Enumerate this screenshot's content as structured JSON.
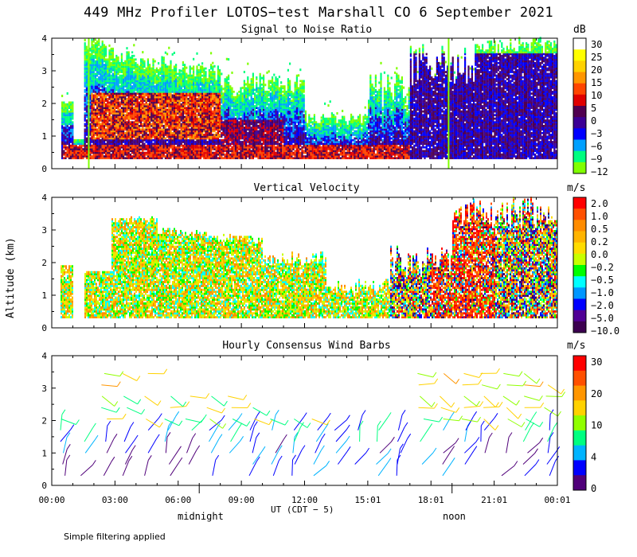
{
  "title": "449 MHz Profiler LOTOS−test Marshall CO  6 September 2021",
  "ylabel": "Altitude (km)",
  "xlabel": "UT  (CDT − 5)",
  "local_labels": [
    "midnight",
    "noon"
  ],
  "footnote": "Simple filtering applied",
  "chart_data": [
    {
      "type": "heatmap",
      "title": "Signal to Noise Ratio",
      "unit": "dB",
      "x_ticks": [
        "00:00",
        "03:00",
        "06:00",
        "09:00",
        "12:00",
        "15:01",
        "18:01",
        "21:01",
        "00:01"
      ],
      "x_range_hours": [
        0,
        24
      ],
      "y_ticks": [
        "0",
        "1",
        "2",
        "3",
        "4"
      ],
      "ylim": [
        0,
        4
      ],
      "colorbar": {
        "labels": [
          "30",
          "25",
          "20",
          "15",
          "10",
          "5",
          "0",
          "−3",
          "−6",
          "−9",
          "−12"
        ],
        "colors": [
          "#ffffff",
          "#ffff00",
          "#ffd200",
          "#ff9600",
          "#ff4600",
          "#e00000",
          "#500050",
          "#3c0096",
          "#0000ff",
          "#00a0ff",
          "#00ff80",
          "#80ff00"
        ]
      }
    },
    {
      "type": "heatmap",
      "title": "Vertical Velocity",
      "unit": "m/s",
      "x_ticks": [
        "00:00",
        "03:00",
        "06:00",
        "09:00",
        "12:00",
        "15:01",
        "18:01",
        "21:01",
        "00:01"
      ],
      "x_range_hours": [
        0,
        24
      ],
      "y_ticks": [
        "0",
        "1",
        "2",
        "3",
        "4"
      ],
      "ylim": [
        0,
        4
      ],
      "colorbar": {
        "labels": [
          "2.0",
          "1.0",
          "0.5",
          "0.2",
          "0.0",
          "−0.2",
          "−0.5",
          "−1.0",
          "−2.0",
          "−5.0",
          "−10.0"
        ],
        "colors": [
          "#ff0000",
          "#ff5000",
          "#ff8c00",
          "#ffb400",
          "#ffdc00",
          "#c8ff00",
          "#00ff00",
          "#00ffff",
          "#0096ff",
          "#0000ff",
          "#500096",
          "#3c0050"
        ]
      }
    },
    {
      "type": "scatter",
      "title": "Hourly Consensus Wind Barbs",
      "unit": "m/s",
      "x_ticks": [
        "00:00",
        "03:00",
        "06:00",
        "09:00",
        "12:00",
        "15:01",
        "18:01",
        "21:01",
        "00:01"
      ],
      "x_range_hours": [
        0,
        24
      ],
      "y_ticks": [
        "0",
        "1",
        "2",
        "3",
        "4"
      ],
      "ylim": [
        0,
        4
      ],
      "colorbar": {
        "labels": [
          "30",
          "20",
          "10",
          "4",
          "0"
        ],
        "colors": [
          "#ff0000",
          "#ff5000",
          "#ff9600",
          "#ffd200",
          "#90ff00",
          "#00ff80",
          "#00b4ff",
          "#0000ff",
          "#50007a"
        ]
      }
    }
  ]
}
